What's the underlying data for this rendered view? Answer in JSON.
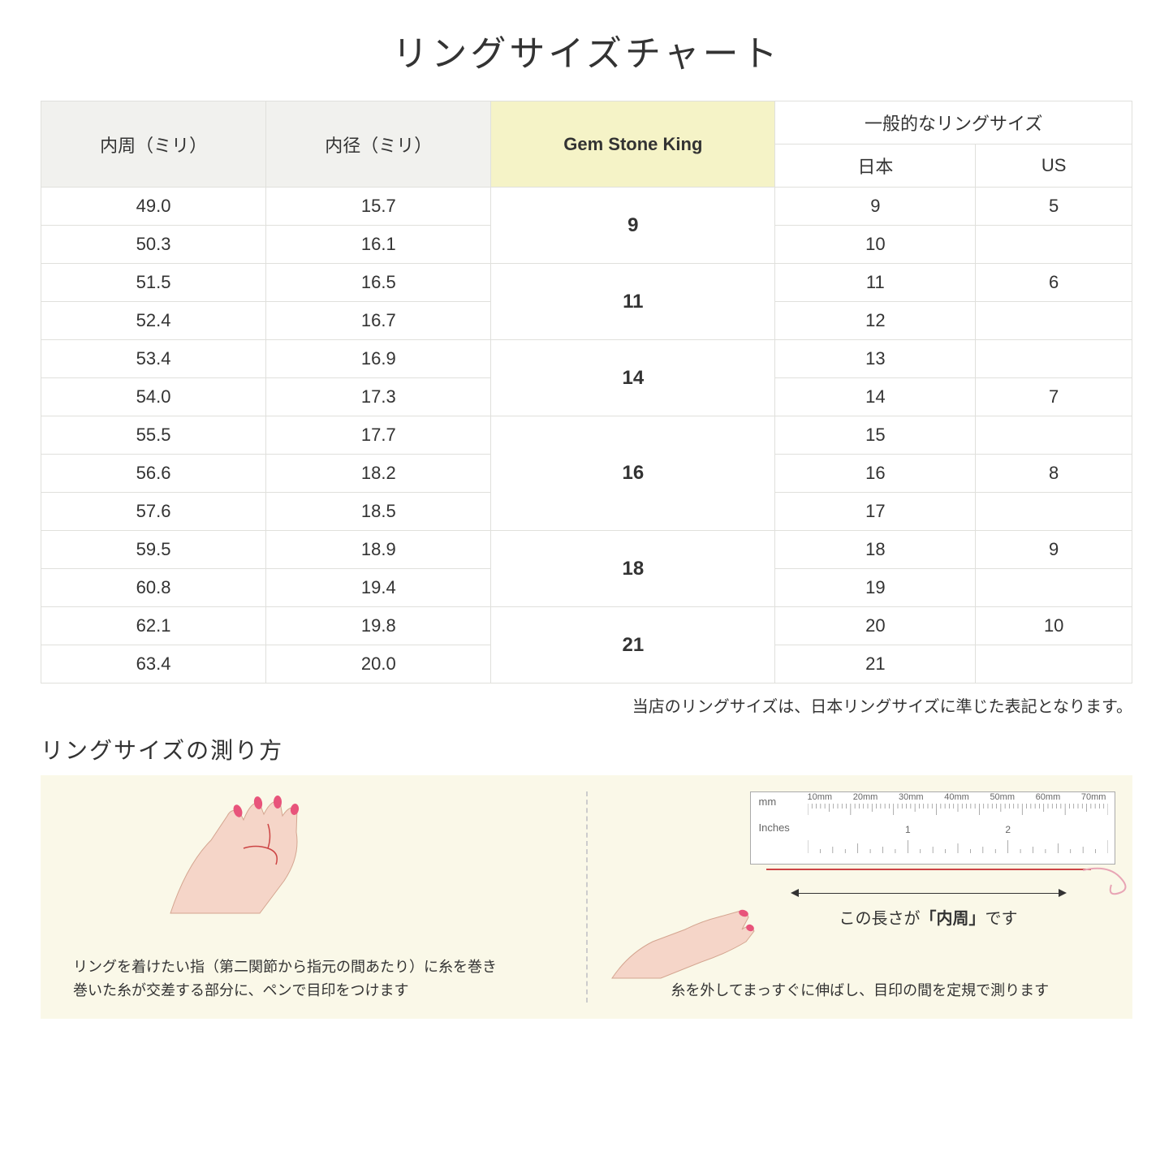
{
  "title": "リングサイズチャート",
  "headers": {
    "circumference": "内周（ミリ）",
    "diameter": "内径（ミリ）",
    "gsk": "Gem Stone King",
    "general": "一般的なリングサイズ",
    "japan": "日本",
    "us": "US"
  },
  "rows": [
    {
      "circ": "49.0",
      "diam": "15.7",
      "jp": "9",
      "us": "5"
    },
    {
      "circ": "50.3",
      "diam": "16.1",
      "jp": "10",
      "us": ""
    },
    {
      "circ": "51.5",
      "diam": "16.5",
      "jp": "11",
      "us": "6"
    },
    {
      "circ": "52.4",
      "diam": "16.7",
      "jp": "12",
      "us": ""
    },
    {
      "circ": "53.4",
      "diam": "16.9",
      "jp": "13",
      "us": ""
    },
    {
      "circ": "54.0",
      "diam": "17.3",
      "jp": "14",
      "us": "7"
    },
    {
      "circ": "55.5",
      "diam": "17.7",
      "jp": "15",
      "us": ""
    },
    {
      "circ": "56.6",
      "diam": "18.2",
      "jp": "16",
      "us": "8"
    },
    {
      "circ": "57.6",
      "diam": "18.5",
      "jp": "17",
      "us": ""
    },
    {
      "circ": "59.5",
      "diam": "18.9",
      "jp": "18",
      "us": "9"
    },
    {
      "circ": "60.8",
      "diam": "19.4",
      "jp": "19",
      "us": ""
    },
    {
      "circ": "62.1",
      "diam": "19.8",
      "jp": "20",
      "us": "10"
    },
    {
      "circ": "63.4",
      "diam": "20.0",
      "jp": "21",
      "us": ""
    }
  ],
  "gsk_groups": [
    {
      "value": "9",
      "span": 2
    },
    {
      "value": "11",
      "span": 2
    },
    {
      "value": "14",
      "span": 2
    },
    {
      "value": "16",
      "span": 3
    },
    {
      "value": "18",
      "span": 2
    },
    {
      "value": "21",
      "span": 2
    }
  ],
  "note": "当店のリングサイズは、日本リングサイズに準じた表記となります。",
  "subtitle": "リングサイズの測り方",
  "instruction_left": "リングを着けたい指（第二関節から指元の間あたり）に糸を巻き\n巻いた糸が交差する部分に、ペンで目印をつけます",
  "instruction_right": "糸を外してまっすぐに伸ばし、目印の間を定規で測ります",
  "ruler": {
    "mm_label": "mm",
    "inches_label": "Inches",
    "mm_ticks": [
      "10mm",
      "20mm",
      "30mm",
      "40mm",
      "50mm",
      "60mm",
      "70mm"
    ],
    "inch_ticks": [
      "1",
      "2"
    ]
  },
  "arrow_label_pre": "この長さが",
  "arrow_label_bold": "「内周」",
  "arrow_label_post": "です",
  "colors": {
    "header_bg": "#f1f1ee",
    "header_yellow": "#f5f3c7",
    "border": "#e0e0dc",
    "instruction_bg": "#faf8e8",
    "skin": "#f5d5c8",
    "nail": "#e8547b",
    "thread": "#c44"
  }
}
